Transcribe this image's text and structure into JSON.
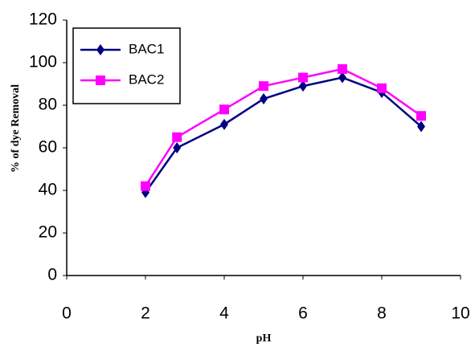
{
  "chart_data": {
    "type": "line",
    "x": [
      2,
      2.8,
      4,
      5,
      6,
      7,
      8,
      9
    ],
    "series": [
      {
        "name": "BAC1",
        "color": "#000080",
        "marker": "diamond",
        "values": [
          39,
          60,
          71,
          83,
          89,
          93,
          86,
          70
        ]
      },
      {
        "name": "BAC2",
        "color": "#ff00ff",
        "marker": "square",
        "values": [
          42,
          65,
          78,
          89,
          93,
          97,
          88,
          75
        ]
      }
    ],
    "xlabel": "pH",
    "ylabel": "% of dye Removal",
    "xlim": [
      0,
      10
    ],
    "xticks": [
      0,
      2,
      4,
      6,
      8,
      10
    ],
    "ylim": [
      0,
      120
    ],
    "yticks": [
      0,
      20,
      40,
      60,
      80,
      100,
      120
    ],
    "grid": false,
    "legend": "upper left"
  }
}
